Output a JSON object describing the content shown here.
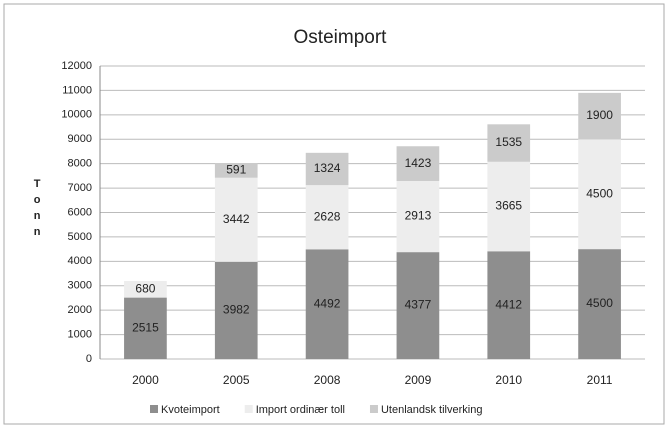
{
  "chart_data": {
    "type": "stacked_bar",
    "title": "Osteimport",
    "y_label": "Tonn",
    "categories": [
      "2000",
      "2005",
      "2008",
      "2009",
      "2010",
      "2011"
    ],
    "series": [
      {
        "name": "Kvoteimport",
        "color": "#8e8e8e",
        "values": [
          2515,
          3982,
          4492,
          4377,
          4412,
          4500
        ]
      },
      {
        "name": "Import ordinær toll",
        "color": "#ededed",
        "values": [
          680,
          3442,
          2628,
          2913,
          3665,
          4500
        ]
      },
      {
        "name": "Utenlandsk tilverking",
        "color": "#cbcbcb",
        "values": [
          null,
          591,
          1324,
          1423,
          1535,
          1900
        ]
      }
    ],
    "ylim": [
      0,
      12000
    ],
    "yticks": [
      0,
      1000,
      2000,
      3000,
      4000,
      5000,
      6000,
      7000,
      8000,
      9000,
      10000,
      11000,
      12000
    ],
    "grid": true,
    "legend": "bottom"
  }
}
